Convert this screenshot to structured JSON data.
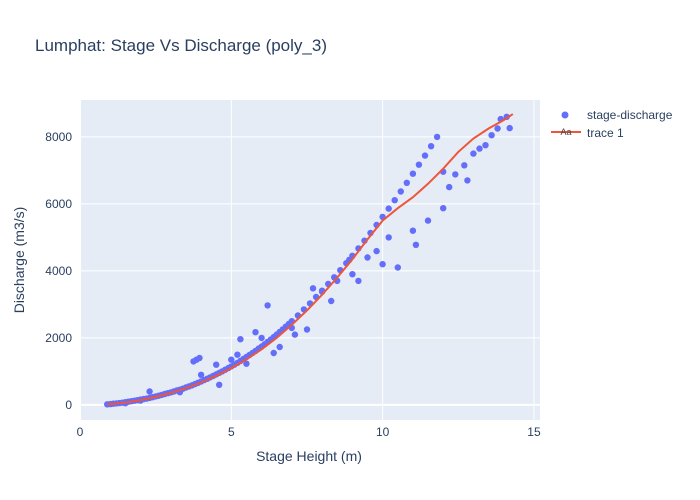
{
  "chart_data": {
    "type": "scatter",
    "title": "Lumphat: Stage Vs Discharge (poly_3)",
    "xlabel": "Stage Height (m)",
    "ylabel": "Discharge (m3/s)",
    "xlim": [
      0,
      15.2
    ],
    "ylim": [
      -450,
      9100
    ],
    "x_ticks": [
      0,
      5,
      10,
      15
    ],
    "x_tick_labels": [
      "0",
      "5",
      "10",
      "15"
    ],
    "y_ticks": [
      0,
      2000,
      4000,
      6000,
      8000
    ],
    "y_tick_labels": [
      "0",
      "2000",
      "4000",
      "6000",
      "8000"
    ],
    "grid": true,
    "legend_position": "top-right",
    "colors": {
      "plot_bg": "#e5ecf6",
      "grid": "#ffffff",
      "scatter": "#636efa",
      "fit_line": "#ef553b",
      "text": "#2a3f5f"
    },
    "series": [
      {
        "name": "stage-discharge",
        "mode": "markers",
        "points": [
          [
            0.9,
            20
          ],
          [
            1.0,
            25
          ],
          [
            1.1,
            35
          ],
          [
            1.2,
            45
          ],
          [
            1.3,
            55
          ],
          [
            1.4,
            65
          ],
          [
            1.5,
            80
          ],
          [
            1.6,
            95
          ],
          [
            1.7,
            110
          ],
          [
            1.8,
            125
          ],
          [
            1.9,
            140
          ],
          [
            2.0,
            160
          ],
          [
            2.1,
            175
          ],
          [
            2.2,
            190
          ],
          [
            2.3,
            210
          ],
          [
            2.4,
            230
          ],
          [
            2.5,
            255
          ],
          [
            2.6,
            275
          ],
          [
            2.7,
            300
          ],
          [
            2.8,
            325
          ],
          [
            2.9,
            350
          ],
          [
            3.0,
            375
          ],
          [
            3.1,
            400
          ],
          [
            3.2,
            430
          ],
          [
            3.3,
            455
          ],
          [
            3.4,
            485
          ],
          [
            3.5,
            520
          ],
          [
            3.6,
            550
          ],
          [
            3.7,
            585
          ],
          [
            3.8,
            620
          ],
          [
            3.9,
            660
          ],
          [
            4.0,
            700
          ],
          [
            4.1,
            740
          ],
          [
            4.2,
            780
          ],
          [
            4.3,
            820
          ],
          [
            4.4,
            865
          ],
          [
            4.5,
            910
          ],
          [
            4.6,
            955
          ],
          [
            4.7,
            1000
          ],
          [
            4.8,
            1050
          ],
          [
            4.9,
            1100
          ],
          [
            5.0,
            1150
          ],
          [
            5.1,
            1200
          ],
          [
            5.2,
            1255
          ],
          [
            5.3,
            1310
          ],
          [
            5.4,
            1370
          ],
          [
            5.5,
            1430
          ],
          [
            5.6,
            1490
          ],
          [
            5.7,
            1550
          ],
          [
            5.8,
            1610
          ],
          [
            5.9,
            1680
          ],
          [
            6.0,
            1740
          ],
          [
            6.1,
            1810
          ],
          [
            6.2,
            1880
          ],
          [
            6.3,
            1950
          ],
          [
            6.4,
            2025
          ],
          [
            6.5,
            2100
          ],
          [
            6.6,
            2175
          ],
          [
            6.7,
            2255
          ],
          [
            6.8,
            2335
          ],
          [
            6.9,
            2415
          ],
          [
            7.0,
            2500
          ],
          [
            7.2,
            2670
          ],
          [
            7.4,
            2850
          ],
          [
            7.6,
            3030
          ],
          [
            7.8,
            3220
          ],
          [
            8.0,
            3410
          ],
          [
            8.2,
            3610
          ],
          [
            8.4,
            3810
          ],
          [
            8.6,
            4020
          ],
          [
            8.8,
            4230
          ],
          [
            9.0,
            4450
          ],
          [
            9.2,
            4670
          ],
          [
            9.4,
            4900
          ],
          [
            9.6,
            5130
          ],
          [
            9.8,
            5370
          ],
          [
            10.0,
            5610
          ],
          [
            10.2,
            5860
          ],
          [
            10.4,
            6110
          ],
          [
            10.6,
            6370
          ],
          [
            10.8,
            6630
          ],
          [
            11.0,
            6900
          ],
          [
            11.2,
            7170
          ],
          [
            11.4,
            7440
          ],
          [
            11.6,
            7720
          ],
          [
            11.8,
            8000
          ],
          [
            12.0,
            5870
          ],
          [
            12.4,
            6880
          ],
          [
            12.7,
            7150
          ],
          [
            13.0,
            7500
          ],
          [
            13.2,
            7650
          ],
          [
            13.4,
            7750
          ],
          [
            13.6,
            8050
          ],
          [
            13.8,
            8250
          ],
          [
            13.9,
            8530
          ],
          [
            14.1,
            8600
          ],
          [
            14.2,
            8260
          ],
          [
            3.75,
            1300
          ],
          [
            3.85,
            1350
          ],
          [
            3.95,
            1400
          ],
          [
            2.3,
            400
          ],
          [
            6.2,
            2970
          ],
          [
            5.3,
            1960
          ],
          [
            7.7,
            3480
          ],
          [
            8.0,
            3380
          ],
          [
            8.9,
            4330
          ],
          [
            9.5,
            4400
          ],
          [
            9.8,
            4590
          ],
          [
            10.5,
            4100
          ],
          [
            11.1,
            4780
          ],
          [
            12.0,
            6960
          ],
          [
            5.8,
            2170
          ],
          [
            6.0,
            2000
          ],
          [
            4.6,
            600
          ],
          [
            3.3,
            380
          ],
          [
            2.0,
            130
          ],
          [
            1.5,
            50
          ],
          [
            5.5,
            1230
          ],
          [
            6.6,
            1730
          ],
          [
            7.1,
            2100
          ],
          [
            7.5,
            2250
          ],
          [
            8.3,
            3100
          ],
          [
            9.2,
            3700
          ],
          [
            10.0,
            4200
          ],
          [
            11.5,
            5500
          ],
          [
            12.8,
            6700
          ],
          [
            4.0,
            900
          ],
          [
            4.5,
            1200
          ],
          [
            5.0,
            1350
          ],
          [
            5.2,
            1500
          ],
          [
            6.4,
            1550
          ],
          [
            7.0,
            2300
          ],
          [
            8.5,
            3700
          ],
          [
            9.0,
            3900
          ],
          [
            10.2,
            5000
          ],
          [
            11.0,
            5200
          ],
          [
            12.2,
            6500
          ]
        ]
      },
      {
        "name": "trace 1",
        "mode": "lines",
        "legend_glyph": "Aa",
        "points": [
          [
            0.9,
            15
          ],
          [
            1.5,
            70
          ],
          [
            2.0,
            145
          ],
          [
            2.5,
            240
          ],
          [
            3.0,
            360
          ],
          [
            3.5,
            500
          ],
          [
            4.0,
            670
          ],
          [
            4.5,
            870
          ],
          [
            5.0,
            1100
          ],
          [
            5.5,
            1360
          ],
          [
            6.0,
            1660
          ],
          [
            6.5,
            2000
          ],
          [
            7.0,
            2390
          ],
          [
            7.5,
            2820
          ],
          [
            8.0,
            3290
          ],
          [
            8.5,
            3800
          ],
          [
            9.0,
            4350
          ],
          [
            9.5,
            4940
          ],
          [
            10.0,
            5500
          ],
          [
            10.5,
            5870
          ],
          [
            11.0,
            6200
          ],
          [
            11.5,
            6600
          ],
          [
            12.0,
            7050
          ],
          [
            12.5,
            7550
          ],
          [
            13.0,
            7950
          ],
          [
            13.5,
            8250
          ],
          [
            14.0,
            8500
          ],
          [
            14.3,
            8680
          ]
        ]
      }
    ]
  }
}
